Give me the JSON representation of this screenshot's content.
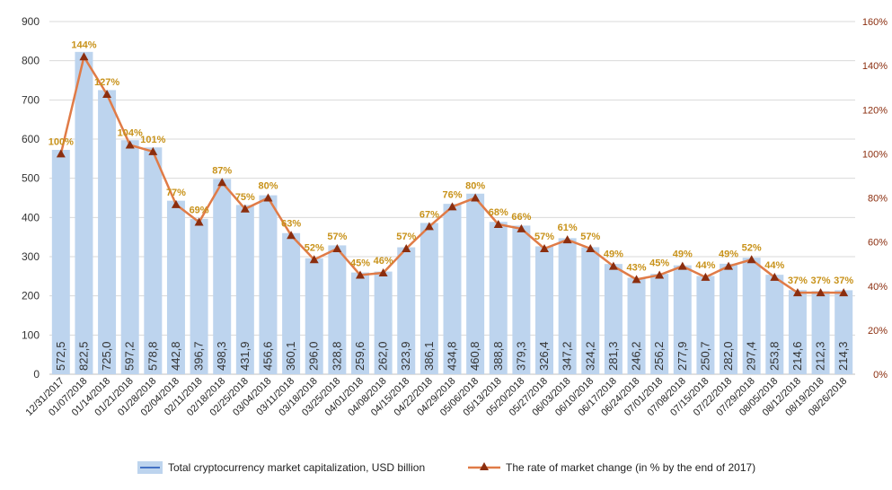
{
  "chart_data": {
    "type": "bar",
    "categories": [
      "12/31/2017",
      "01/07/2018",
      "01/14/2018",
      "01/21/2018",
      "01/28/2018",
      "02/04/2018",
      "02/11/2018",
      "02/18/2018",
      "02/25/2018",
      "03/04/2018",
      "03/11/2018",
      "03/18/2018",
      "03/25/2018",
      "04/01/2018",
      "04/08/2018",
      "04/15/2018",
      "04/22/2018",
      "04/29/2018",
      "05/06/2018",
      "05/13/2018",
      "05/20/2018",
      "05/27/2018",
      "06/03/2018",
      "06/10/2018",
      "06/17/2018",
      "06/24/2018",
      "07/01/2018",
      "07/08/2018",
      "07/15/2018",
      "07/22/2018",
      "07/29/2018",
      "08/05/2018",
      "08/12/2018",
      "08/19/2018",
      "08/26/2018"
    ],
    "series": [
      {
        "name": "Total cryptocurrency market capitalization, USD billion",
        "type": "bar",
        "axis": "left",
        "values": [
          572.5,
          822.5,
          725.0,
          597.2,
          578.8,
          442.8,
          396.7,
          498.3,
          431.9,
          456.6,
          360.1,
          296.0,
          328.8,
          259.6,
          262.0,
          323.9,
          386.1,
          434.8,
          460.8,
          388.8,
          379.3,
          326.4,
          347.2,
          324.2,
          281.3,
          246.2,
          256.2,
          277.9,
          250.7,
          282.0,
          297.4,
          253.8,
          214.6,
          212.3,
          214.3
        ],
        "labels": [
          "572,5",
          "822,5",
          "725,0",
          "597,2",
          "578,8",
          "442,8",
          "396,7",
          "498,3",
          "431,9",
          "456,6",
          "360,1",
          "296,0",
          "328,8",
          "259,6",
          "262,0",
          "323,9",
          "386,1",
          "434,8",
          "460,8",
          "388,8",
          "379,3",
          "326,4",
          "347,2",
          "324,2",
          "281,3",
          "246,2",
          "256,2",
          "277,9",
          "250,7",
          "282,0",
          "297,4",
          "253,8",
          "214,6",
          "212,3",
          "214,3"
        ],
        "color": "#bdd4ee"
      },
      {
        "name": "The rate of market change (in % by the end of 2017)",
        "type": "line",
        "axis": "right",
        "values": [
          100,
          144,
          127,
          104,
          101,
          77,
          69,
          87,
          75,
          80,
          63,
          52,
          57,
          45,
          46,
          57,
          67,
          76,
          80,
          68,
          66,
          57,
          61,
          57,
          49,
          43,
          45,
          49,
          44,
          49,
          52,
          44,
          37,
          37,
          37
        ],
        "labels": [
          "100%",
          "144%",
          "127%",
          "104%",
          "101%",
          "77%",
          "69%",
          "87%",
          "75%",
          "80%",
          "63%",
          "52%",
          "57%",
          "45%",
          "46%",
          "57%",
          "67%",
          "76%",
          "80%",
          "68%",
          "66%",
          "57%",
          "61%",
          "57%",
          "49%",
          "43%",
          "45%",
          "49%",
          "44%",
          "49%",
          "52%",
          "44%",
          "37%",
          "37%",
          "37%"
        ],
        "color": "#e07b47",
        "marker_color": "#8b2e0f"
      }
    ],
    "y_left": {
      "ticks": [
        "0",
        "100",
        "200",
        "300",
        "400",
        "500",
        "600",
        "700",
        "800",
        "900"
      ],
      "ylim": [
        0,
        900
      ]
    },
    "y_right": {
      "ticks": [
        "0%",
        "20%",
        "40%",
        "60%",
        "80%",
        "100%",
        "120%",
        "140%",
        "160%"
      ],
      "ylim": [
        0,
        160
      ]
    },
    "grid": true,
    "legend": "bottom"
  }
}
